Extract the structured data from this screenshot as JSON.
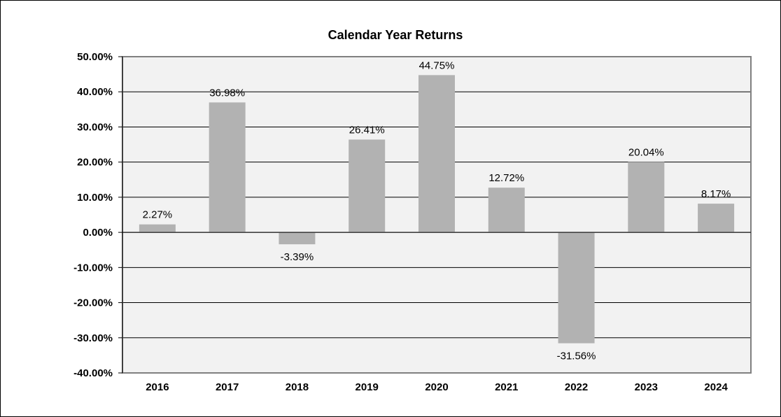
{
  "chart_data": {
    "type": "bar",
    "title": "Calendar Year Returns",
    "categories": [
      "2016",
      "2017",
      "2018",
      "2019",
      "2020",
      "2021",
      "2022",
      "2023",
      "2024"
    ],
    "values": [
      2.27,
      36.98,
      -3.39,
      26.41,
      44.75,
      12.72,
      -31.56,
      20.04,
      8.17
    ],
    "data_labels": [
      "2.27%",
      "36.98%",
      "-3.39%",
      "26.41%",
      "44.75%",
      "12.72%",
      "-31.56%",
      "20.04%",
      "8.17%"
    ],
    "ylim": [
      -40,
      50
    ],
    "yticks": [
      50,
      40,
      30,
      20,
      10,
      0,
      -10,
      -20,
      -30,
      -40
    ],
    "ytick_labels": [
      "50.00%",
      "40.00%",
      "30.00%",
      "20.00%",
      "10.00%",
      "0.00%",
      "-10.00%",
      "-20.00%",
      "-30.00%",
      "-40.00%"
    ],
    "xlabel": "",
    "ylabel": "",
    "grid": true,
    "legend": "none",
    "colors": {
      "bar": "#b2b2b2",
      "plot_background": "#f2f2f2",
      "gridline": "#000000",
      "plot_border": "#808080"
    }
  }
}
